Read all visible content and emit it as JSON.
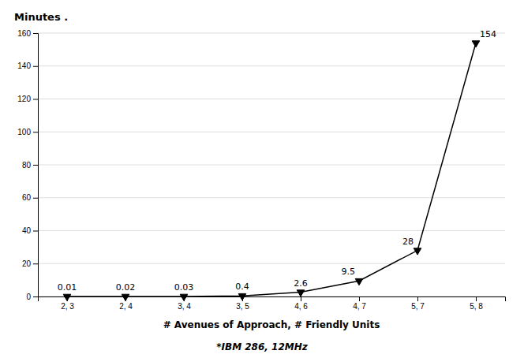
{
  "chart_data": {
    "type": "line",
    "categories": [
      "2, 3",
      "2, 4",
      "3, 4",
      "3, 5",
      "4, 6",
      "4, 7",
      "5, 7",
      "5, 8"
    ],
    "values": [
      0.01,
      0.02,
      0.03,
      0.4,
      2.6,
      9.5,
      28,
      154
    ],
    "xlabel": "# Avenues of Approach, # Friendly Units",
    "ylabel": "Minutes .",
    "subtitle": "*IBM 286, 12MHz",
    "ylim": [
      0,
      160
    ],
    "yticks": [
      0,
      20,
      40,
      60,
      80,
      100,
      120,
      140,
      160
    ],
    "color": "#000000",
    "marker": "triangle-down",
    "grid": true,
    "data_labels": true
  }
}
